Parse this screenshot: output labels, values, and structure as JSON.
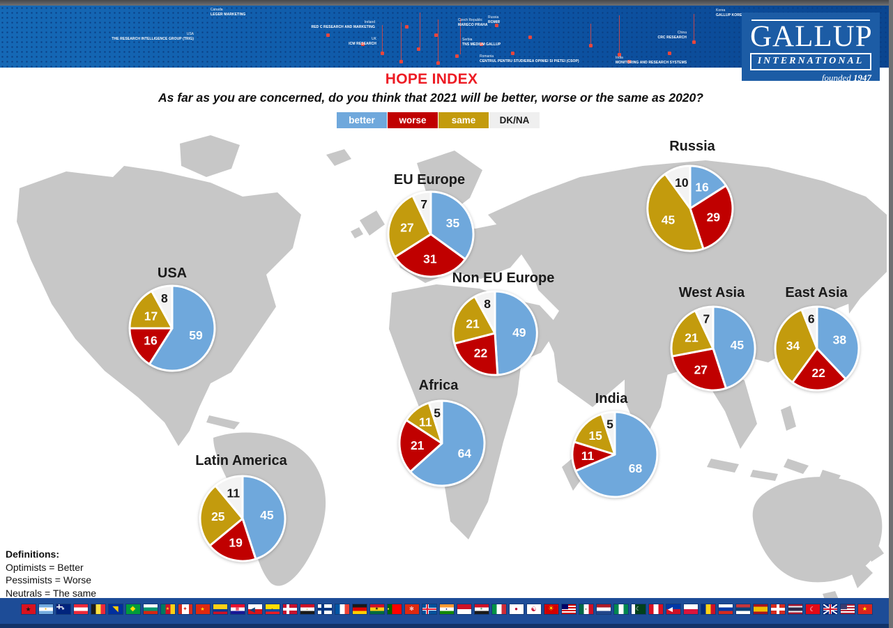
{
  "title": "HOPE INDEX",
  "subtitle": "As far as you are concerned, do you think that 2021 will be better, worse or the same as 2020?",
  "header_banner": {
    "logo": {
      "name": "GALLUP",
      "sub": "INTERNATIONAL",
      "founded_label": "founded",
      "founded_year": "1947"
    },
    "offices": [
      {
        "country": "Canada",
        "org": "LEGER MARKETING"
      },
      {
        "country": "USA",
        "org": "THE RESEARCH INTELLIGENCE GROUP (TRIG)"
      },
      {
        "country": "Ireland",
        "org": "RED C RESEARCH AND MARKETING"
      },
      {
        "country": "UK",
        "org": "ICM RESEARCH"
      },
      {
        "country": "Czech Republic",
        "org": "MARECO PRAHA"
      },
      {
        "country": "Russia",
        "org": "ROMIR"
      },
      {
        "country": "Serbia",
        "org": "TNS MEDIUM GALLUP"
      },
      {
        "country": "Romania",
        "org": "CENTRUL PENTRU STUDIEREA OPINIEI SI PIETEI (CSOP)"
      },
      {
        "country": "Korea",
        "org": "GALLUP KOREA"
      },
      {
        "country": "China",
        "org": "CRC RESEARCH"
      },
      {
        "country": "India",
        "org": "MONITORING AND RESEARCH SYSTEMS"
      }
    ]
  },
  "legend": [
    {
      "label": "better",
      "color": "#6fa8dc",
      "text": "#ffffff"
    },
    {
      "label": "worse",
      "color": "#c00000",
      "text": "#ffffff"
    },
    {
      "label": "same",
      "color": "#c39b0d",
      "text": "#ffffff"
    },
    {
      "label": "DK/NA",
      "color": "#efefef",
      "text": "#1a1a1a"
    }
  ],
  "slice_colors": [
    "#6fa8dc",
    "#c00000",
    "#c39b0d",
    "#f3f3f3"
  ],
  "map_color": "#c7c7c7",
  "chart_data": [
    {
      "type": "pie",
      "region": "USA",
      "categories": [
        "better",
        "worse",
        "same",
        "DK/NA"
      ],
      "values": [
        59,
        16,
        17,
        8
      ]
    },
    {
      "type": "pie",
      "region": "Latin America",
      "categories": [
        "better",
        "worse",
        "same",
        "DK/NA"
      ],
      "values": [
        45,
        19,
        25,
        11
      ]
    },
    {
      "type": "pie",
      "region": "EU Europe",
      "categories": [
        "better",
        "worse",
        "same",
        "DK/NA"
      ],
      "values": [
        35,
        31,
        27,
        7
      ]
    },
    {
      "type": "pie",
      "region": "Non EU Europe",
      "categories": [
        "better",
        "worse",
        "same",
        "DK/NA"
      ],
      "values": [
        49,
        22,
        21,
        8
      ]
    },
    {
      "type": "pie",
      "region": "Africa",
      "categories": [
        "better",
        "worse",
        "same",
        "DK/NA"
      ],
      "values": [
        64,
        21,
        11,
        5
      ]
    },
    {
      "type": "pie",
      "region": "Russia",
      "categories": [
        "better",
        "worse",
        "same",
        "DK/NA"
      ],
      "values": [
        16,
        29,
        45,
        10
      ]
    },
    {
      "type": "pie",
      "region": "West Asia",
      "categories": [
        "better",
        "worse",
        "same",
        "DK/NA"
      ],
      "values": [
        45,
        27,
        21,
        7
      ]
    },
    {
      "type": "pie",
      "region": "East Asia",
      "categories": [
        "better",
        "worse",
        "same",
        "DK/NA"
      ],
      "values": [
        38,
        22,
        34,
        6
      ]
    },
    {
      "type": "pie",
      "region": "India",
      "categories": [
        "better",
        "worse",
        "same",
        "DK/NA"
      ],
      "values": [
        68,
        11,
        15,
        5
      ]
    }
  ],
  "definitions": {
    "heading": "Definitions:",
    "lines": [
      "Optimists = Better",
      "Pessimists = Worse",
      "Neutrals = The same"
    ]
  },
  "flags": [
    {
      "name": "Albania",
      "dir": "h",
      "bands": [
        "#d8121f"
      ],
      "emblem": "★",
      "emblem_color": "#1a1a1a",
      "emblem_size": 9
    },
    {
      "name": "Argentina",
      "dir": "h",
      "bands": [
        "#74acdf",
        "#ffffff",
        "#74acdf"
      ],
      "emblem": "●",
      "emblem_color": "#f6b40e",
      "emblem_size": 5
    },
    {
      "name": "Australia",
      "dir": "h",
      "bands": [
        "#00247d"
      ],
      "canton": "uk",
      "emblem": "★",
      "emblem_color": "#ffffff",
      "emblem_size": 6
    },
    {
      "name": "Austria",
      "dir": "h",
      "bands": [
        "#ed2939",
        "#ffffff",
        "#ed2939"
      ]
    },
    {
      "name": "Belgium",
      "dir": "v",
      "bands": [
        "#1a1a1a",
        "#fae042",
        "#ed2939"
      ]
    },
    {
      "name": "Bosnia and Herzegovina",
      "dir": "h",
      "bands": [
        "#002f9e"
      ],
      "emblem": "◥",
      "emblem_color": "#fecb00",
      "emblem_size": 11
    },
    {
      "name": "Brazil",
      "dir": "h",
      "bands": [
        "#009c3b"
      ],
      "emblem": "◆",
      "emblem_color": "#ffdf00",
      "emblem_size": 10
    },
    {
      "name": "Bulgaria",
      "dir": "h",
      "bands": [
        "#ffffff",
        "#00966e",
        "#d62612"
      ]
    },
    {
      "name": "Cameroon",
      "dir": "v",
      "bands": [
        "#007a5e",
        "#ce1126",
        "#fcd116"
      ],
      "emblem": "★",
      "emblem_color": "#fcd116",
      "emblem_size": 6
    },
    {
      "name": "Canada",
      "dir": "v",
      "bands": [
        "#d52b1e",
        "#ffffff",
        "#ffffff",
        "#d52b1e"
      ],
      "emblem": "✦",
      "emblem_color": "#d52b1e",
      "emblem_size": 8
    },
    {
      "name": "China",
      "dir": "h",
      "bands": [
        "#de2910"
      ],
      "emblem": "★",
      "emblem_color": "#ffde00",
      "emblem_size": 7
    },
    {
      "name": "Colombia",
      "dir": "h",
      "bands": [
        "#fcd116",
        "#fcd116",
        "#003893",
        "#ce1126"
      ]
    },
    {
      "name": "Croatia",
      "dir": "h",
      "bands": [
        "#e8112d",
        "#ffffff",
        "#171796"
      ],
      "emblem": "▦",
      "emblem_color": "#e8112d",
      "emblem_size": 6
    },
    {
      "name": "Czech Republic",
      "dir": "h",
      "bands": [
        "#ffffff",
        "#d7141a"
      ],
      "emblem": "◄",
      "emblem_color": "#11457e",
      "emblem_size": 13,
      "emblem_pos": "left"
    },
    {
      "name": "Ecuador",
      "dir": "h",
      "bands": [
        "#ffdd00",
        "#ffdd00",
        "#034ea2",
        "#ed1c24"
      ],
      "emblem": "●",
      "emblem_color": "#6b4a2c",
      "emblem_size": 4
    },
    {
      "name": "Denmark",
      "dir": "h",
      "bands": [
        "#c8102e"
      ],
      "cross": {
        "outer": "#ffffff"
      }
    },
    {
      "name": "Egypt",
      "dir": "h",
      "bands": [
        "#ce1126",
        "#ffffff",
        "#1a1a1a"
      ],
      "emblem": "●",
      "emblem_color": "#c09300",
      "emblem_size": 3
    },
    {
      "name": "Finland",
      "dir": "h",
      "bands": [
        "#ffffff"
      ],
      "cross": {
        "outer": "#003580"
      }
    },
    {
      "name": "France",
      "dir": "v",
      "bands": [
        "#0055a4",
        "#ffffff",
        "#ef4135"
      ]
    },
    {
      "name": "Germany",
      "dir": "h",
      "bands": [
        "#1a1a1a",
        "#dd0000",
        "#ffce00"
      ]
    },
    {
      "name": "Ghana",
      "dir": "h",
      "bands": [
        "#ce1126",
        "#fcd116",
        "#006b3f"
      ],
      "emblem": "★",
      "emblem_color": "#1a1a1a",
      "emblem_size": 6
    },
    {
      "name": "Portugal",
      "dir": "v",
      "bands": [
        "#006600",
        "#ff0000",
        "#ff0000"
      ],
      "emblem": "●",
      "emblem_color": "#ffe34c",
      "emblem_size": 5,
      "emblem_pos": "left"
    },
    {
      "name": "Hong Kong",
      "dir": "h",
      "bands": [
        "#de2910"
      ],
      "emblem": "✻",
      "emblem_color": "#ffffff",
      "emblem_size": 8
    },
    {
      "name": "Iceland",
      "dir": "h",
      "bands": [
        "#02529c"
      ],
      "cross": {
        "outer": "#ffffff",
        "inner": "#dc1e35"
      }
    },
    {
      "name": "India",
      "dir": "h",
      "bands": [
        "#ff9933",
        "#ffffff",
        "#138808"
      ],
      "emblem": "●",
      "emblem_color": "#000080",
      "emblem_size": 4
    },
    {
      "name": "Indonesia",
      "dir": "h",
      "bands": [
        "#ce1126",
        "#ffffff"
      ]
    },
    {
      "name": "Iraq",
      "dir": "h",
      "bands": [
        "#ce1126",
        "#ffffff",
        "#1a1a1a"
      ],
      "emblem": "✳",
      "emblem_color": "#007a3d",
      "emblem_size": 5
    },
    {
      "name": "Italy",
      "dir": "v",
      "bands": [
        "#009246",
        "#ffffff",
        "#ce2b37"
      ]
    },
    {
      "name": "Japan",
      "dir": "h",
      "bands": [
        "#ffffff"
      ],
      "emblem": "●",
      "emblem_color": "#bc002d",
      "emblem_size": 8
    },
    {
      "name": "South Korea",
      "dir": "h",
      "bands": [
        "#ffffff"
      ],
      "emblem": "☯",
      "emblem_color": "#c60c30",
      "emblem_size": 9
    },
    {
      "name": "North Macedonia",
      "dir": "h",
      "bands": [
        "#d20000"
      ],
      "emblem": "☀",
      "emblem_color": "#ffe600",
      "emblem_size": 10
    },
    {
      "name": "Malaysia",
      "dir": "h",
      "bands": [
        "#cc0001",
        "#ffffff",
        "#cc0001",
        "#ffffff",
        "#cc0001",
        "#ffffff",
        "#cc0001"
      ],
      "canton": "#010066"
    },
    {
      "name": "Mexico",
      "dir": "v",
      "bands": [
        "#006847",
        "#ffffff",
        "#ce1126"
      ],
      "emblem": "●",
      "emblem_color": "#6b4a2c",
      "emblem_size": 4
    },
    {
      "name": "Netherlands",
      "dir": "h",
      "bands": [
        "#ae1c28",
        "#ffffff",
        "#21468b"
      ]
    },
    {
      "name": "Nigeria",
      "dir": "v",
      "bands": [
        "#008751",
        "#ffffff",
        "#008751"
      ]
    },
    {
      "name": "Pakistan",
      "dir": "v",
      "bands": [
        "#ffffff",
        "#01411c",
        "#01411c",
        "#01411c"
      ],
      "emblem": "☾",
      "emblem_color": "#ffffff",
      "emblem_size": 8
    },
    {
      "name": "Peru",
      "dir": "v",
      "bands": [
        "#d91023",
        "#ffffff",
        "#d91023"
      ]
    },
    {
      "name": "Philippines",
      "dir": "h",
      "bands": [
        "#0038a8",
        "#ce1126"
      ],
      "emblem": "◄",
      "emblem_color": "#ffffff",
      "emblem_size": 12,
      "emblem_pos": "left"
    },
    {
      "name": "Poland",
      "dir": "h",
      "bands": [
        "#ffffff",
        "#dc143c"
      ]
    },
    {
      "name": "Romania",
      "dir": "v",
      "bands": [
        "#002b7f",
        "#fcd116",
        "#ce1126"
      ]
    },
    {
      "name": "Russia",
      "dir": "h",
      "bands": [
        "#ffffff",
        "#0039a6",
        "#d52b1e"
      ]
    },
    {
      "name": "Serbia",
      "dir": "h",
      "bands": [
        "#c6363c",
        "#0c4076",
        "#ffffff"
      ]
    },
    {
      "name": "Spain",
      "dir": "h",
      "bands": [
        "#aa151b",
        "#f1bf00",
        "#f1bf00",
        "#aa151b"
      ]
    },
    {
      "name": "Switzerland",
      "dir": "h",
      "bands": [
        "#d52b1e"
      ],
      "cross": {
        "outer": "#ffffff",
        "centered": true
      }
    },
    {
      "name": "Thailand",
      "dir": "h",
      "bands": [
        "#a51931",
        "#f4f5f8",
        "#2d2a4a",
        "#2d2a4a",
        "#f4f5f8",
        "#a51931"
      ]
    },
    {
      "name": "Turkey",
      "dir": "h",
      "bands": [
        "#e30a17"
      ],
      "emblem": "☾",
      "emblem_color": "#ffffff",
      "emblem_size": 9
    },
    {
      "name": "United Kingdom",
      "dir": "h",
      "bands": [
        "#00247d"
      ],
      "saltire": "#ffffff",
      "cross": {
        "outer": "#ffffff",
        "inner": "#cf142b",
        "centered": true
      }
    },
    {
      "name": "USA",
      "dir": "h",
      "bands": [
        "#b22234",
        "#ffffff",
        "#b22234",
        "#ffffff",
        "#b22234",
        "#ffffff",
        "#b22234"
      ],
      "canton": "#3c3b6e"
    },
    {
      "name": "Vietnam",
      "dir": "h",
      "bands": [
        "#da251d"
      ],
      "emblem": "★",
      "emblem_color": "#ffff00",
      "emblem_size": 8
    }
  ]
}
